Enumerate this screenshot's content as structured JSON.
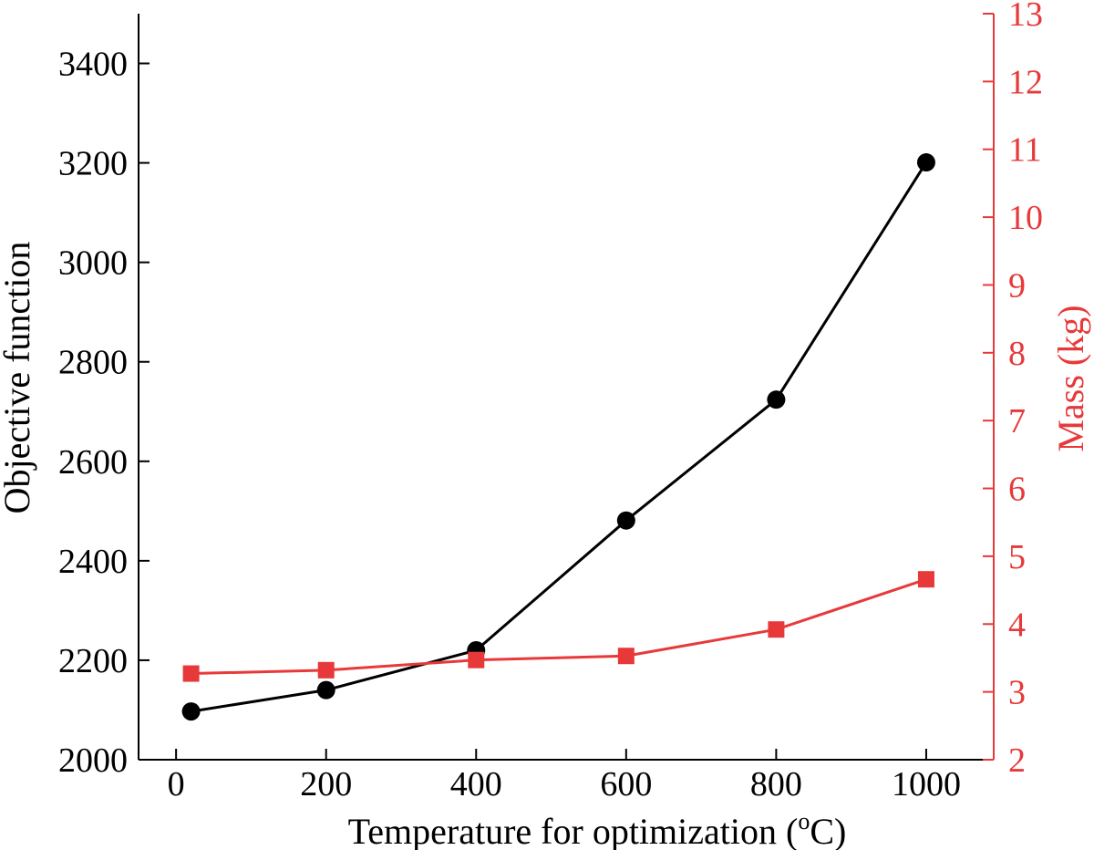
{
  "chart_data": {
    "type": "line",
    "title": "",
    "xlabel": "Temperature for  optimization (",
    "xlabel_sup": "o",
    "xlabel_unit": "C)",
    "ylabel_left": "Objective function",
    "ylabel_right": "Mass (kg)",
    "xlim": [
      -50,
      1090
    ],
    "ylim_left": [
      2000,
      3500
    ],
    "ylim_right": [
      2,
      13
    ],
    "x_ticks": [
      0,
      200,
      400,
      600,
      800,
      1000
    ],
    "y_left_ticks": [
      2000,
      2200,
      2400,
      2600,
      2800,
      3000,
      3200,
      3400
    ],
    "y_right_ticks": [
      2,
      3,
      4,
      5,
      6,
      7,
      8,
      9,
      10,
      11,
      12,
      13
    ],
    "grid": false,
    "legend": "none",
    "series": [
      {
        "axis": "left",
        "color": "#000000",
        "marker": "circle",
        "x": [
          20,
          200,
          400,
          600,
          800,
          1000
        ],
        "y": [
          2097,
          2140,
          2220,
          2481,
          2724,
          3201
        ]
      },
      {
        "axis": "right",
        "color": "#e8393a",
        "marker": "square",
        "x": [
          20,
          200,
          400,
          600,
          800,
          1000
        ],
        "y": [
          3.27,
          3.32,
          3.47,
          3.53,
          3.92,
          4.66
        ]
      }
    ]
  }
}
